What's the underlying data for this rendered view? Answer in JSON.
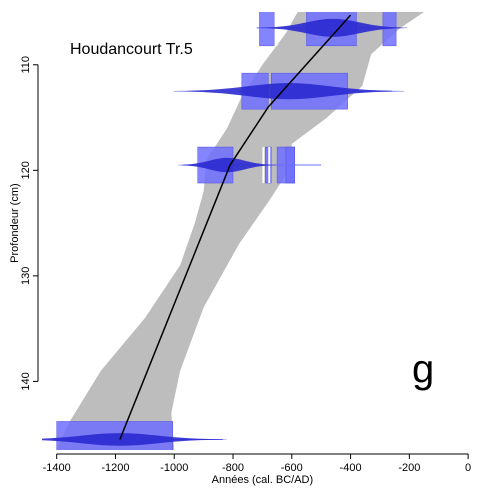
{
  "chart_data": {
    "type": "area",
    "title": "",
    "site_label": "Houdancourt Tr.5",
    "panel_letter": "g",
    "xlabel": "Années (cal. BC/AD)",
    "ylabel": "Profondeur (cm)",
    "xlim": [
      -1450,
      20
    ],
    "ylim": [
      146.5,
      105
    ],
    "x_ticks": [
      -1400,
      -1200,
      -1000,
      -800,
      -600,
      -400,
      -200,
      0
    ],
    "y_ticks": [
      110,
      120,
      130,
      140
    ],
    "colors": {
      "envelope": "#bdbdbd",
      "model_line": "#000000",
      "date_box": "#6f6fff",
      "date_density": "#2a2ad0",
      "date_whisker": "#6f6fff"
    },
    "envelope": {
      "upper": [
        {
          "x": -1000,
          "y": 146.5
        },
        {
          "x": -1010,
          "y": 143
        },
        {
          "x": -980,
          "y": 139
        },
        {
          "x": -900,
          "y": 133
        },
        {
          "x": -780,
          "y": 127
        },
        {
          "x": -680,
          "y": 123
        },
        {
          "x": -610,
          "y": 120
        },
        {
          "x": -600,
          "y": 117.5
        },
        {
          "x": -480,
          "y": 115
        },
        {
          "x": -360,
          "y": 112
        },
        {
          "x": -330,
          "y": 109
        },
        {
          "x": -230,
          "y": 106.5
        },
        {
          "x": -150,
          "y": 105
        }
      ],
      "lower": [
        {
          "x": -1400,
          "y": 146.5
        },
        {
          "x": -1360,
          "y": 144
        },
        {
          "x": -1250,
          "y": 139
        },
        {
          "x": -1100,
          "y": 134
        },
        {
          "x": -980,
          "y": 129
        },
        {
          "x": -930,
          "y": 125
        },
        {
          "x": -900,
          "y": 122
        },
        {
          "x": -890,
          "y": 119
        },
        {
          "x": -820,
          "y": 116
        },
        {
          "x": -770,
          "y": 113
        },
        {
          "x": -700,
          "y": 110
        },
        {
          "x": -620,
          "y": 107
        },
        {
          "x": -580,
          "y": 105
        }
      ]
    },
    "model_line": [
      {
        "x": -1185,
        "y": 145.5
      },
      {
        "x": -810,
        "y": 119.5
      },
      {
        "x": -680,
        "y": 114
      },
      {
        "x": -400,
        "y": 105.3
      }
    ],
    "dates": [
      {
        "depth": 106.5,
        "whisker": [
          -720,
          -230
        ],
        "boxes": [
          [
            -710,
            -660
          ],
          [
            -550,
            -380
          ],
          [
            -290,
            -245
          ]
        ],
        "marks": [
          [
            -655,
            -650
          ]
        ],
        "density": {
          "center": -460,
          "spread": 90,
          "height": 1.0
        }
      },
      {
        "depth": 112.5,
        "whisker": [
          -780,
          -260
        ],
        "boxes": [
          [
            -770,
            -680
          ],
          [
            -670,
            -410
          ]
        ],
        "marks": [],
        "density": {
          "center": -610,
          "spread": 140,
          "height": 0.9
        }
      },
      {
        "depth": 119.5,
        "whisker": [
          -970,
          -500
        ],
        "boxes": [
          [
            -920,
            -800
          ],
          [
            -690,
            -670
          ],
          [
            -650,
            -590
          ],
          [
            -620,
            -590
          ]
        ],
        "marks": [
          [
            -700,
            -695
          ],
          [
            -680,
            -675
          ]
        ],
        "density": {
          "center": -820,
          "spread": 60,
          "height": 0.8
        }
      },
      {
        "depth": 145.5,
        "whisker": [
          -1410,
          -835
        ],
        "boxes": [
          [
            -1400,
            -1005
          ]
        ],
        "marks": [],
        "density": {
          "center": -1185,
          "spread": 130,
          "height": 0.7
        }
      }
    ]
  }
}
